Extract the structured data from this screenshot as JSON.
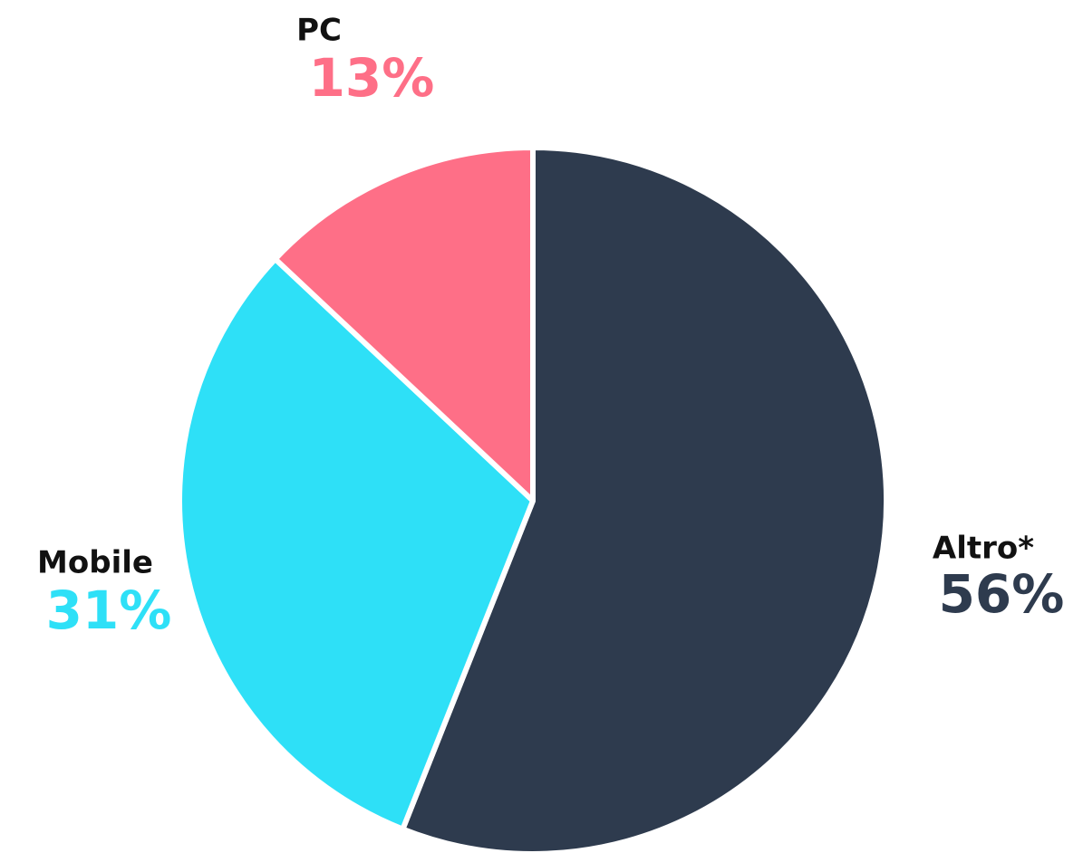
{
  "chart_data": {
    "type": "pie",
    "categories": [
      "Altro*",
      "Mobile",
      "PC"
    ],
    "values": [
      56,
      31,
      13
    ],
    "value_labels": [
      "56%",
      "31%",
      "13%"
    ],
    "colors": [
      "#2e3b4e",
      "#2ee0f7",
      "#fe6f87"
    ]
  }
}
